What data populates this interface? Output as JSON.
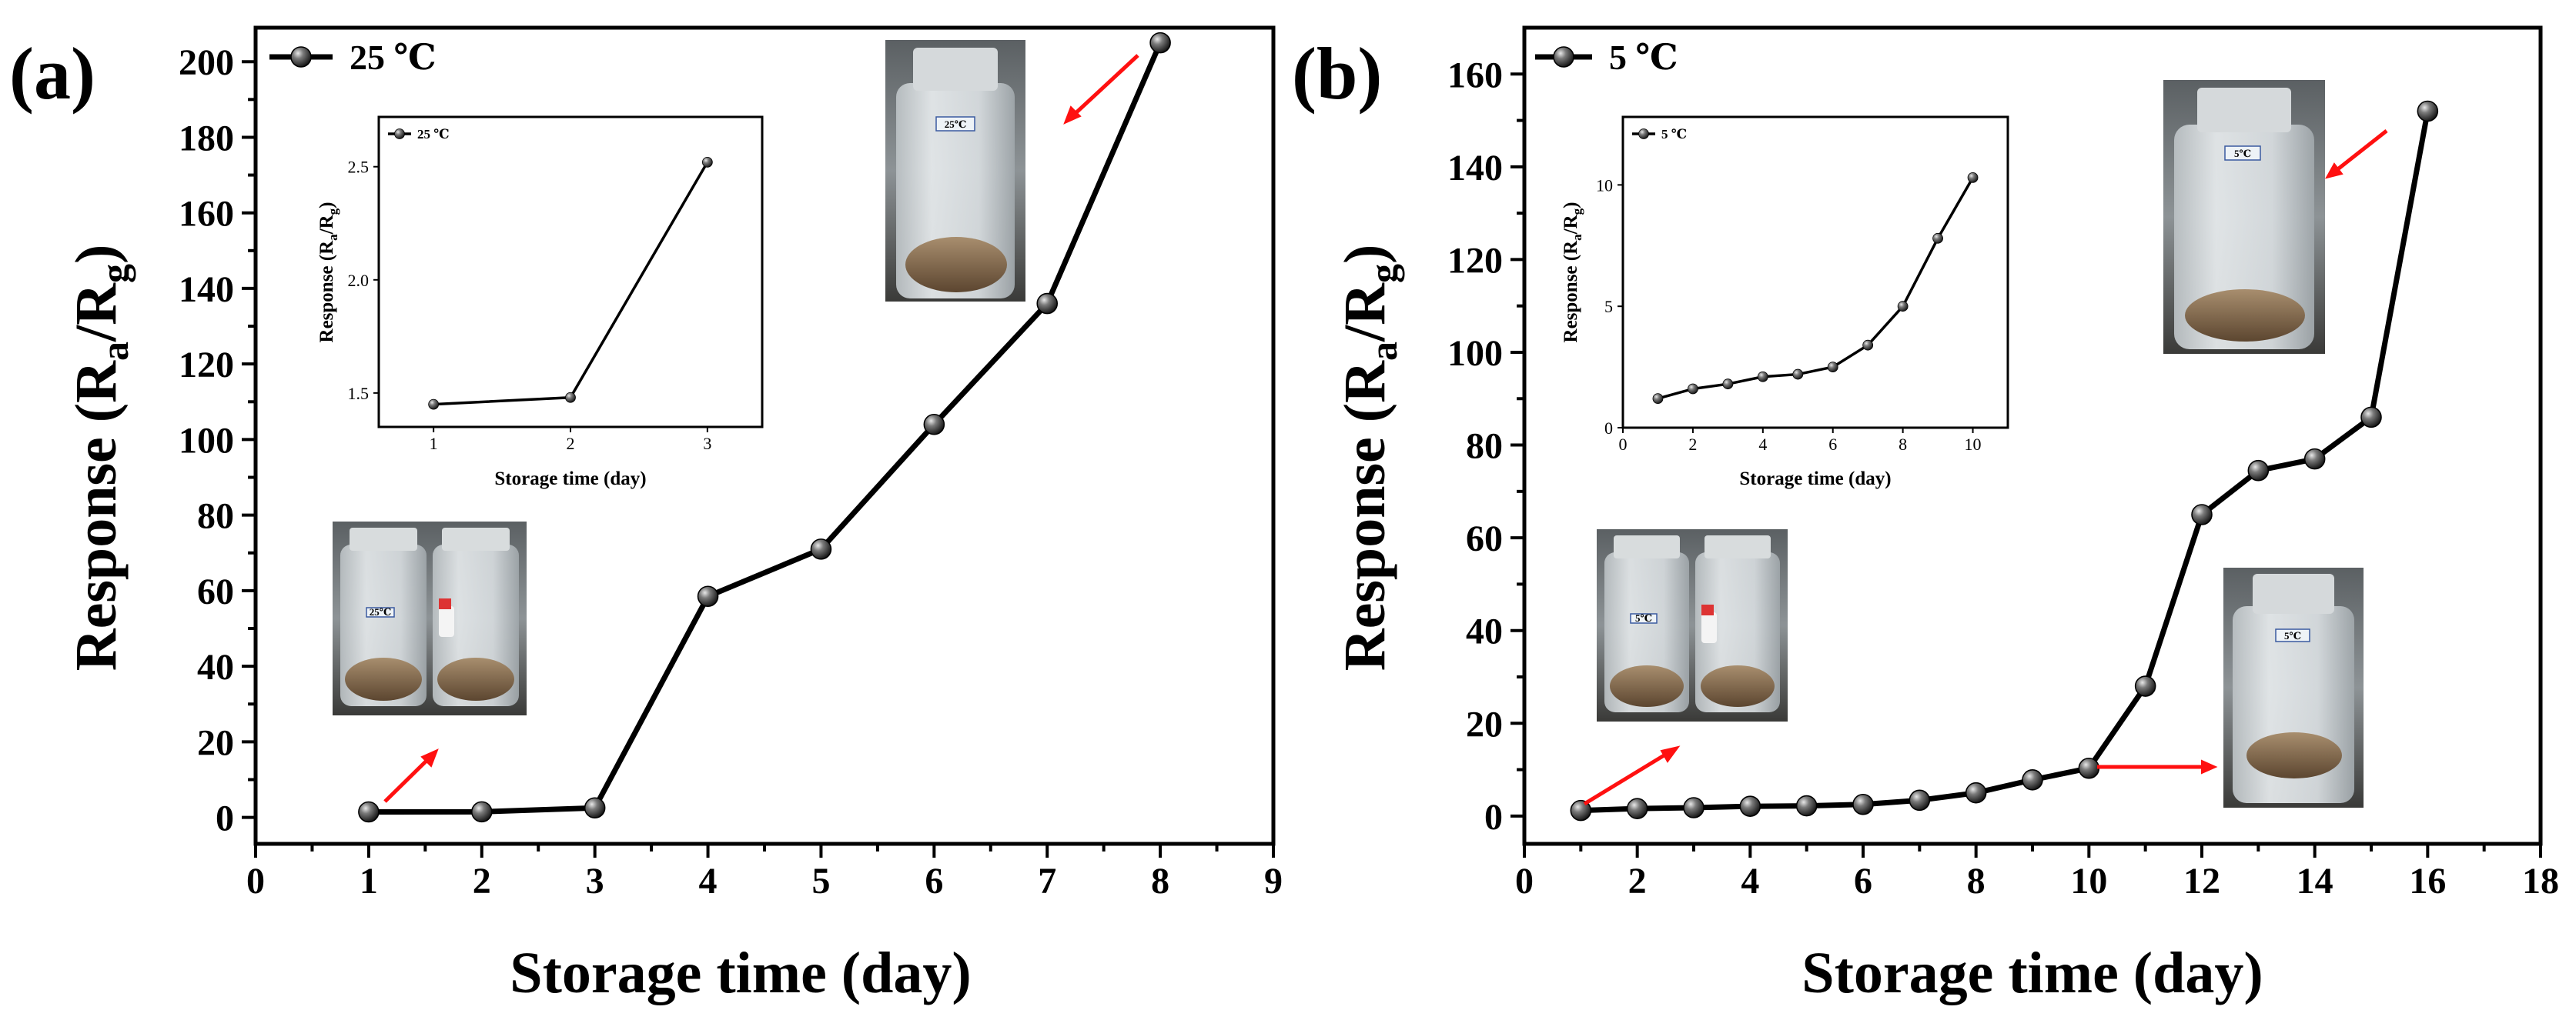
{
  "chart_data": [
    {
      "panel": "(a)",
      "type": "line",
      "xlabel": "Storage time (day)",
      "ylabel": "Response (R",
      "ylabel_sub_a": "a",
      "ylabel_slash": "/R",
      "ylabel_sub_g": "g",
      "ylabel_close": ")",
      "xlim": [
        0,
        9
      ],
      "ylim": [
        -7,
        209
      ],
      "xticks": [
        0,
        1,
        2,
        3,
        4,
        5,
        6,
        7,
        8,
        9
      ],
      "yticks": [
        0,
        20,
        40,
        60,
        80,
        100,
        120,
        140,
        160,
        180,
        200
      ],
      "series": [
        {
          "name": "25 ℃",
          "x": [
            1,
            2,
            3,
            4,
            5,
            6,
            7,
            8
          ],
          "values": [
            1.45,
            1.48,
            2.52,
            58.5,
            71,
            104,
            136,
            205
          ]
        }
      ],
      "inset": {
        "xlabel": "Storage time (day)",
        "ylabel": "Response (R",
        "ylabel_sub_a": "a",
        "ylabel_slash": "/R",
        "ylabel_sub_g": "g",
        "ylabel_close": ")",
        "xlim": [
          0.6,
          3.4
        ],
        "ylim": [
          1.35,
          2.72
        ],
        "xticks": [
          1,
          2,
          3
        ],
        "yticks": [
          1.5,
          2.0,
          2.5
        ],
        "ytick_labels": [
          "1.5",
          "2.0",
          "2.5"
        ],
        "series": [
          {
            "name": "25 ℃",
            "x": [
              1,
              2,
              3
            ],
            "values": [
              1.45,
              1.48,
              2.52
            ]
          }
        ]
      },
      "photo_labels": [
        "25℃",
        "25℃"
      ]
    },
    {
      "panel": "(b)",
      "type": "line",
      "xlabel": "Storage time (day)",
      "ylabel": "Response (R",
      "ylabel_sub_a": "a",
      "ylabel_slash": "/R",
      "ylabel_sub_g": "g",
      "ylabel_close": ")",
      "xlim": [
        0,
        18
      ],
      "ylim": [
        -6,
        170
      ],
      "xticks": [
        0,
        2,
        4,
        6,
        8,
        10,
        12,
        14,
        16,
        18
      ],
      "yticks": [
        0,
        20,
        40,
        60,
        80,
        100,
        120,
        140,
        160
      ],
      "series": [
        {
          "name": "5 ℃",
          "x": [
            1,
            2,
            3,
            4,
            5,
            6,
            7,
            8,
            9,
            10,
            11,
            12,
            13,
            14,
            15,
            16
          ],
          "values": [
            1.2,
            1.6,
            1.8,
            2.1,
            2.2,
            2.5,
            3.4,
            5.0,
            7.8,
            10.3,
            28,
            65,
            74.5,
            77,
            86,
            152
          ]
        }
      ],
      "inset": {
        "xlabel": "Storage time (day)",
        "ylabel": "Response (R",
        "ylabel_sub_a": "a",
        "ylabel_slash": "/R",
        "ylabel_sub_g": "g",
        "ylabel_close": ")",
        "xlim": [
          0,
          11
        ],
        "ylim": [
          0,
          12.8
        ],
        "xticks": [
          0,
          2,
          4,
          6,
          8,
          10
        ],
        "yticks": [
          0,
          5,
          10
        ],
        "ytick_labels": [
          "0",
          "5",
          "10"
        ],
        "series": [
          {
            "name": "5 ℃",
            "x": [
              1,
              2,
              3,
              4,
              5,
              6,
              7,
              8,
              9,
              10
            ],
            "values": [
              1.2,
              1.6,
              1.8,
              2.1,
              2.2,
              2.5,
              3.4,
              5.0,
              7.8,
              10.3
            ]
          }
        ]
      },
      "photo_labels": [
        "5℃",
        "5℃"
      ]
    }
  ],
  "colors": {
    "line": "#000000",
    "arrow": "#ff1010",
    "marker_light": "#dcdcdc",
    "marker_dark": "#101010"
  }
}
